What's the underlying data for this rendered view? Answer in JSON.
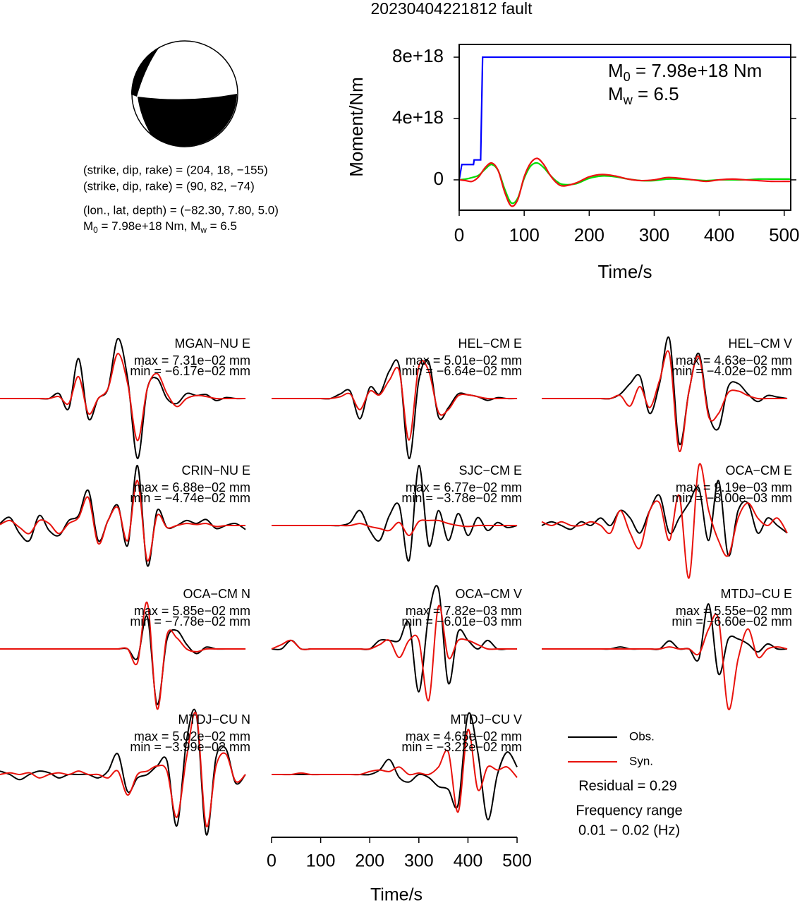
{
  "title": "20230404221812 fault",
  "focal_mechanism": {
    "lines": [
      "(strike, dip, rake) = (204, 18, −155)",
      "(strike, dip, rake) = (90, 82, −74)",
      "(lon., lat, depth) = (−82.30, 7.80, 5.0)"
    ],
    "moment_line": [
      "M",
      "0",
      " = 7.98e+18 Nm, M",
      "w",
      " = 6.5"
    ]
  },
  "chart_data": [
    {
      "type": "line",
      "xlabel": "Time/s",
      "ylabel": "Moment/Nm",
      "xlim": [
        0,
        510
      ],
      "xticks": [
        0,
        100,
        200,
        300,
        400,
        500
      ],
      "ylim": [
        -1.98e+18,
        8.83e+18
      ],
      "yticks": [
        {
          "value": 0,
          "label": "0"
        },
        {
          "value": 4e+18,
          "label": "4e+18"
        },
        {
          "value": 8e+18,
          "label": "8e+18"
        }
      ],
      "annotations": [
        [
          "M",
          "0",
          " = 7.98e+18 Nm"
        ],
        [
          "M",
          "w",
          " = 6.5"
        ]
      ],
      "series": [
        {
          "color": "#0000ff",
          "x": [
            0,
            4,
            22,
            23,
            33,
            36,
            510
          ],
          "values": [
            0,
            1e+18,
            1e+18,
            1.3e+18,
            1.3e+18,
            8e+18,
            8e+18
          ]
        },
        {
          "color": "#00dd00",
          "x": [
            0,
            10,
            20,
            30,
            40,
            50,
            60,
            70,
            80,
            90,
            100,
            110,
            120,
            130,
            140,
            150,
            160,
            180,
            200,
            220,
            240,
            260,
            280,
            300,
            320,
            340,
            360,
            380,
            400,
            420,
            440,
            460,
            480,
            500,
            510
          ],
          "values": [
            0,
            5e+16,
            1.5e+17,
            3e+17,
            7e+17,
            1e+18,
            6e+17,
            -6e+17,
            -1.5e+18,
            -1.2e+18,
            1e+17,
            9e+17,
            1.1e+18,
            8e+17,
            3e+17,
            -1e+17,
            -3e+17,
            -2.5e+17,
            1e+17,
            2.5e+17,
            2e+17,
            5e+16,
            -5e+16,
            -5e+16,
            5e+16,
            5e+16,
            0,
            -5e+16,
            0,
            0,
            0,
            5e+16,
            5e+16,
            5e+16,
            5e+16
          ]
        },
        {
          "color": "#ee1111",
          "x": [
            0,
            10,
            20,
            30,
            40,
            50,
            60,
            70,
            80,
            90,
            100,
            110,
            120,
            130,
            140,
            150,
            160,
            180,
            200,
            220,
            240,
            260,
            280,
            300,
            320,
            340,
            360,
            380,
            400,
            420,
            440,
            460,
            480,
            500,
            510
          ],
          "values": [
            0,
            -5e+16,
            -1e+17,
            2e+17,
            8e+17,
            1.1e+18,
            6e+17,
            -8e+17,
            -1.7e+18,
            -1.3e+18,
            2e+17,
            1.1e+18,
            1.4e+18,
            1e+18,
            3e+17,
            -2e+17,
            -4e+17,
            -2e+17,
            2e+17,
            3.5e+17,
            2.5e+17,
            5e+16,
            -5e+16,
            0,
            1.5e+17,
            1e+17,
            0,
            -1e+17,
            0,
            5e+16,
            0,
            -5e+16,
            -1e+17,
            -1e+17,
            -1e+17
          ]
        }
      ]
    },
    {
      "type": "waveform",
      "xlabel": "Time/s",
      "x": [
        0,
        20,
        40,
        60,
        80,
        100,
        120,
        140,
        160,
        180,
        200,
        220,
        240,
        260,
        280,
        300,
        320,
        340,
        360,
        380,
        400,
        420,
        440,
        460,
        480,
        500
      ],
      "xlim": [
        0,
        510
      ],
      "xticks": [
        0,
        100,
        200,
        300,
        400,
        500
      ],
      "legend": [
        {
          "name": "Obs.",
          "color": "#000000"
        },
        {
          "name": "Syn.",
          "color": "#e8120c"
        }
      ],
      "residual": "Residual = 0.29",
      "frequency": [
        "Frequency range",
        "0.01 − 0.02 (Hz)"
      ],
      "panels": [
        {
          "station": "MGAN−NU E",
          "max_label": "max = 7.31e−02 mm",
          "min_label": "min = −6.17e−02 mm",
          "obs": [
            0,
            0,
            0,
            0,
            0,
            0,
            0.005,
            -0.01,
            0.04,
            -0.02,
            0,
            0.01,
            0.06,
            0.02,
            -0.06,
            0.01,
            0.02,
            0,
            -0.005,
            0.005,
            0.003,
            0.004,
            -0.002,
            0.001,
            0,
            0
          ],
          "syn": [
            0,
            0,
            0,
            0,
            0,
            0,
            0.002,
            -0.005,
            0.022,
            -0.015,
            0,
            0.01,
            0.045,
            0.015,
            -0.042,
            0.01,
            0.025,
            0.005,
            -0.008,
            0,
            0.003,
            0.002,
            0,
            0,
            0,
            0
          ]
        },
        {
          "station": "HEL−CM E",
          "max_label": "max = 5.01e−02 mm",
          "min_label": "min = −6.64e−02 mm",
          "obs": [
            0,
            0,
            0,
            0,
            0,
            0,
            0,
            0.005,
            0.008,
            -0.022,
            0.012,
            0.005,
            0.03,
            0.035,
            -0.065,
            0.02,
            0.04,
            -0.02,
            -0.01,
            0.005,
            0.004,
            0.002,
            -0.002,
            0.001,
            0,
            0
          ],
          "syn": [
            0,
            0,
            0,
            0,
            0,
            0,
            0,
            0.002,
            0.005,
            -0.012,
            0.008,
            0.004,
            0.02,
            0.03,
            -0.045,
            0.035,
            0.03,
            -0.015,
            -0.012,
            0.003,
            0.004,
            0.002,
            0,
            0,
            0,
            0
          ]
        },
        {
          "station": "HEL−CM V",
          "max_label": "max = 4.63e−02 mm",
          "min_label": "min = −4.02e−02 mm",
          "obs": [
            0,
            0,
            0,
            0,
            0,
            0,
            0,
            0,
            0.003,
            0.01,
            0.015,
            -0.01,
            0.01,
            0.04,
            -0.03,
            0.005,
            0.03,
            -0.01,
            -0.02,
            0.008,
            0.01,
            0.003,
            -0.002,
            0.002,
            0.001,
            0
          ],
          "syn": [
            0,
            0,
            0,
            0,
            0,
            0,
            0,
            0,
            0.002,
            -0.005,
            0.008,
            -0.006,
            0.012,
            0.03,
            -0.035,
            0.005,
            0.028,
            -0.012,
            -0.01,
            0.004,
            0.005,
            0.002,
            0,
            0,
            0,
            0
          ]
        },
        {
          "station": "CRIN−NU E",
          "max_label": "max = 6.88e−02 mm",
          "min_label": "min = −4.74e−02 mm",
          "obs": [
            0.002,
            0.008,
            -0.008,
            -0.015,
            0.01,
            -0.005,
            -0.01,
            0.005,
            0.01,
            0.035,
            -0.015,
            0.005,
            0.02,
            -0.02,
            0.06,
            -0.04,
            0.015,
            -0.002,
            0,
            0.005,
            0.002,
            0.006,
            -0.003,
            0,
            0.002,
            -0.004
          ],
          "syn": [
            0.001,
            0.005,
            -0.002,
            -0.008,
            0.005,
            0.002,
            -0.008,
            0.002,
            0.008,
            0.028,
            -0.018,
            0.005,
            0.018,
            -0.015,
            0.045,
            -0.035,
            0.01,
            -0.002,
            0,
            0.002,
            0.001,
            0.002,
            -0.001,
            0,
            0,
            0
          ]
        },
        {
          "station": "SJC−CM E",
          "max_label": "max = 6.77e−02 mm",
          "min_label": "min = −3.78e−02 mm",
          "obs": [
            0,
            0,
            0,
            0,
            0,
            0,
            0,
            0,
            0.003,
            0.015,
            -0.005,
            -0.015,
            0.01,
            0.02,
            -0.035,
            0.06,
            -0.02,
            0.015,
            -0.015,
            0.012,
            -0.01,
            0.008,
            -0.005,
            0.003,
            -0.002,
            0
          ],
          "syn": [
            0,
            0,
            0,
            0,
            0,
            0,
            0,
            0,
            0,
            0.002,
            -0.001,
            -0.003,
            -0.005,
            0.003,
            -0.01,
            0.004,
            0.005,
            0.005,
            0.002,
            0,
            -0.001,
            0,
            0,
            0,
            0,
            0
          ]
        },
        {
          "station": "OCA−CM E",
          "max_label": "max = 9.19e−03 mm",
          "min_label": "min = −8.00e−03 mm",
          "obs": [
            0,
            0.0005,
            0,
            -0.0005,
            0.0005,
            0,
            0.001,
            0,
            0.002,
            0.001,
            -0.001,
            0.002,
            0.004,
            -0.001,
            0.001,
            0.003,
            0.005,
            -0.002,
            0.006,
            -0.004,
            0.002,
            0.003,
            -0.001,
            0.001,
            0,
            -0.001
          ],
          "syn": [
            0.0005,
            0,
            0.0005,
            0,
            0,
            0.0005,
            0,
            -0.001,
            0.002,
            -0.001,
            -0.003,
            0.002,
            0.003,
            -0.002,
            0.004,
            -0.007,
            0.008,
            0.002,
            -0.002,
            -0.004,
            0.001,
            0.003,
            0.001,
            0,
            0.001,
            -0.001
          ]
        },
        {
          "station": "OCA−CM N",
          "max_label": "max = 5.85e−02 mm",
          "min_label": "min = −7.78e−02 mm",
          "obs": [
            0,
            0,
            0,
            0,
            0,
            0,
            0,
            0,
            0,
            0,
            0,
            0,
            0,
            0,
            -0.01,
            0.035,
            -0.06,
            0.01,
            0.02,
            0.005,
            -0.005,
            0.002,
            0,
            0,
            0,
            0
          ],
          "syn": [
            0,
            0,
            0,
            0,
            0,
            0,
            0,
            0,
            0,
            0,
            0,
            0,
            0,
            0,
            -0.015,
            0.05,
            -0.065,
            0.015,
            0.012,
            0,
            -0.003,
            0,
            0,
            0,
            0,
            0
          ]
        },
        {
          "station": "OCA−CM V",
          "max_label": "max = 7.82e−03 mm",
          "min_label": "min = −6.01e−03 mm",
          "obs": [
            0,
            0,
            0.001,
            0,
            0,
            0,
            0,
            0,
            0,
            0,
            0,
            0.001,
            0.001,
            0.001,
            0.003,
            -0.005,
            0.004,
            0.007,
            -0.004,
            0.002,
            0.001,
            0,
            0.001,
            0,
            0,
            0
          ],
          "syn": [
            0,
            0.0005,
            0.001,
            0,
            0,
            0,
            0,
            0,
            0,
            0,
            0,
            0.0005,
            0.001,
            -0.001,
            0.001,
            0.001,
            -0.006,
            0.005,
            -0.001,
            0.001,
            0.001,
            0.0005,
            0,
            0,
            0,
            0
          ]
        },
        {
          "station": "MTDJ−CU E",
          "max_label": "max = 5.55e−02 mm",
          "min_label": "min = −6.60e−02 mm",
          "obs": [
            0,
            0,
            0,
            0,
            0,
            0,
            0,
            0,
            0.002,
            0,
            0,
            0,
            0,
            0.008,
            0,
            0,
            -0.01,
            0.045,
            -0.025,
            0.01,
            0.01,
            0.005,
            -0.003,
            0.005,
            0,
            0
          ],
          "syn": [
            0,
            0,
            0,
            0,
            0,
            0,
            0,
            0,
            0,
            0,
            0,
            0,
            0,
            0.002,
            0,
            0,
            -0.005,
            0.02,
            0.03,
            -0.06,
            -0.01,
            0.02,
            -0.008,
            0,
            0.002,
            0
          ]
        },
        {
          "station": "MTDJ−CU N",
          "max_label": "max = 5.02e−02 mm",
          "min_label": "min = −3.99e−02 mm",
          "obs": [
            0.002,
            0,
            -0.003,
            0,
            0.002,
            0.001,
            -0.002,
            0,
            0,
            0,
            -0.002,
            0.002,
            0.012,
            -0.01,
            -0.002,
            0,
            0.005,
            0.008,
            -0.03,
            0.02,
            0.035,
            -0.035,
            0.01,
            0.015,
            -0.005,
            0
          ],
          "syn": [
            0,
            0.001,
            0,
            0.001,
            -0.002,
            0,
            0.001,
            0,
            0.002,
            0,
            0,
            -0.002,
            0.002,
            -0.012,
            0,
            0.002,
            0.005,
            0.002,
            -0.025,
            0.01,
            0.035,
            -0.03,
            0.005,
            0.012,
            -0.004,
            0
          ]
        },
        {
          "station": "MTDJ−CU V",
          "max_label": "max = 4.65e−02 mm",
          "min_label": "min = −3.22e−02 mm",
          "obs": [
            0,
            0,
            0,
            0,
            0,
            0,
            0,
            0,
            0,
            0,
            0,
            0.003,
            0.01,
            -0.002,
            -0.005,
            0,
            -0.002,
            -0.008,
            -0.01,
            -0.02,
            0.04,
            0.015,
            -0.03,
            0,
            0.015,
            0.005
          ],
          "syn": [
            0,
            0,
            0,
            0.001,
            0,
            0,
            0,
            0,
            0,
            0,
            0.002,
            0.003,
            0.002,
            0.005,
            0,
            0.001,
            0,
            0.005,
            0.015,
            -0.025,
            0.03,
            -0.01,
            0.005,
            0.003,
            0.005,
            -0.002
          ]
        }
      ]
    }
  ]
}
